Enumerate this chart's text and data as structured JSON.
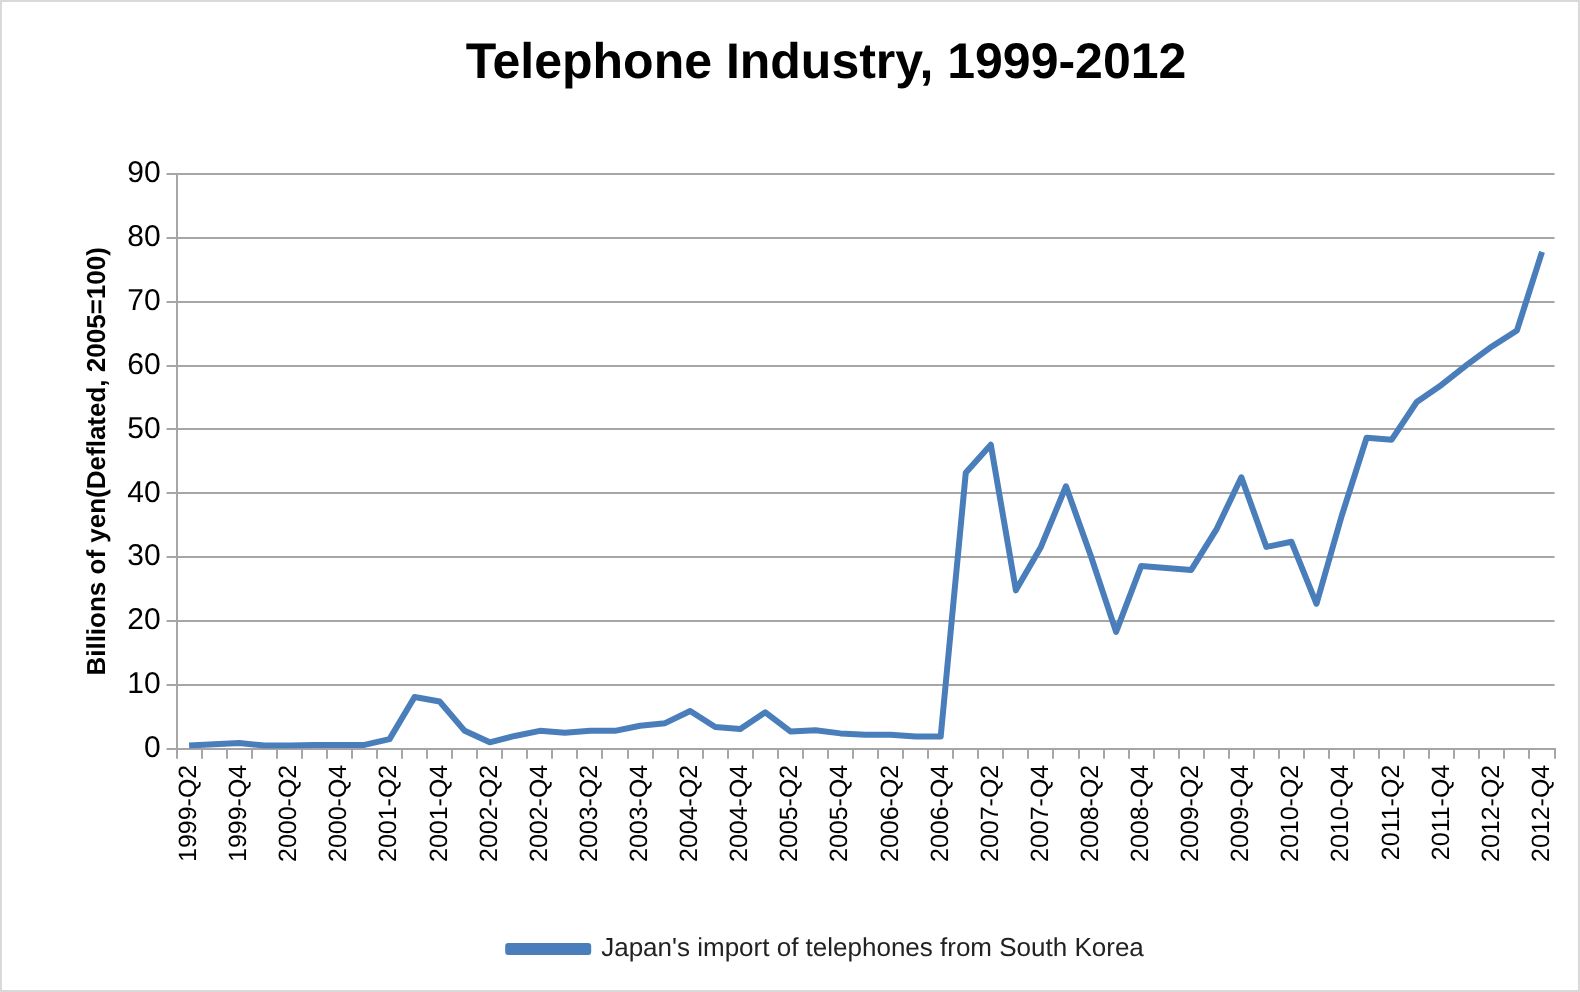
{
  "chart_data": {
    "type": "line",
    "title": "Telephone Industry, 1999-2012",
    "ylabel": "Billions of yen(Deflated, 2005=100)",
    "categories": [
      "1999-Q2",
      null,
      "1999-Q4",
      null,
      "2000-Q2",
      null,
      "2000-Q4",
      null,
      "2001-Q2",
      null,
      "2001-Q4",
      null,
      "2002-Q2",
      null,
      "2002-Q4",
      null,
      "2003-Q2",
      null,
      "2003-Q4",
      null,
      "2004-Q2",
      null,
      "2004-Q4",
      null,
      "2005-Q2",
      null,
      "2005-Q4",
      null,
      "2006-Q2",
      null,
      "2006-Q4",
      null,
      "2007-Q2",
      null,
      "2007-Q4",
      null,
      "2008-Q2",
      null,
      "2008-Q4",
      null,
      "2009-Q2",
      null,
      "2009-Q4",
      null,
      "2010-Q2",
      null,
      "2010-Q4",
      null,
      "2011-Q2",
      null,
      "2011-Q4",
      null,
      "2012-Q2",
      null,
      "2012-Q4"
    ],
    "series": [
      {
        "name": "Japan's import of telephones from South Korea",
        "color": "#4a7ebb",
        "values": [
          0.5,
          0.7,
          0.9,
          0.5,
          0.5,
          0.6,
          0.6,
          0.6,
          1.5,
          8.1,
          7.4,
          2.8,
          1.0,
          2.0,
          2.8,
          2.5,
          2.8,
          2.8,
          3.6,
          4.0,
          5.9,
          3.4,
          3.1,
          5.7,
          2.7,
          2.9,
          2.4,
          2.2,
          2.2,
          1.9,
          1.9,
          43.2,
          47.6,
          24.8,
          31.6,
          41.1,
          30.1,
          18.3,
          28.6,
          28.3,
          28.0,
          34.3,
          42.5,
          31.6,
          32.4,
          22.7,
          36.4,
          48.7,
          48.4,
          54.3,
          57.0,
          60.1,
          63.0,
          65.5,
          77.8
        ]
      }
    ],
    "ylim": [
      0,
      90
    ],
    "yticks": [
      0,
      10,
      20,
      30,
      40,
      50,
      60,
      70,
      80,
      90
    ],
    "grid": "y",
    "legend": "bottom",
    "marker": "none",
    "line_style": "solid"
  }
}
